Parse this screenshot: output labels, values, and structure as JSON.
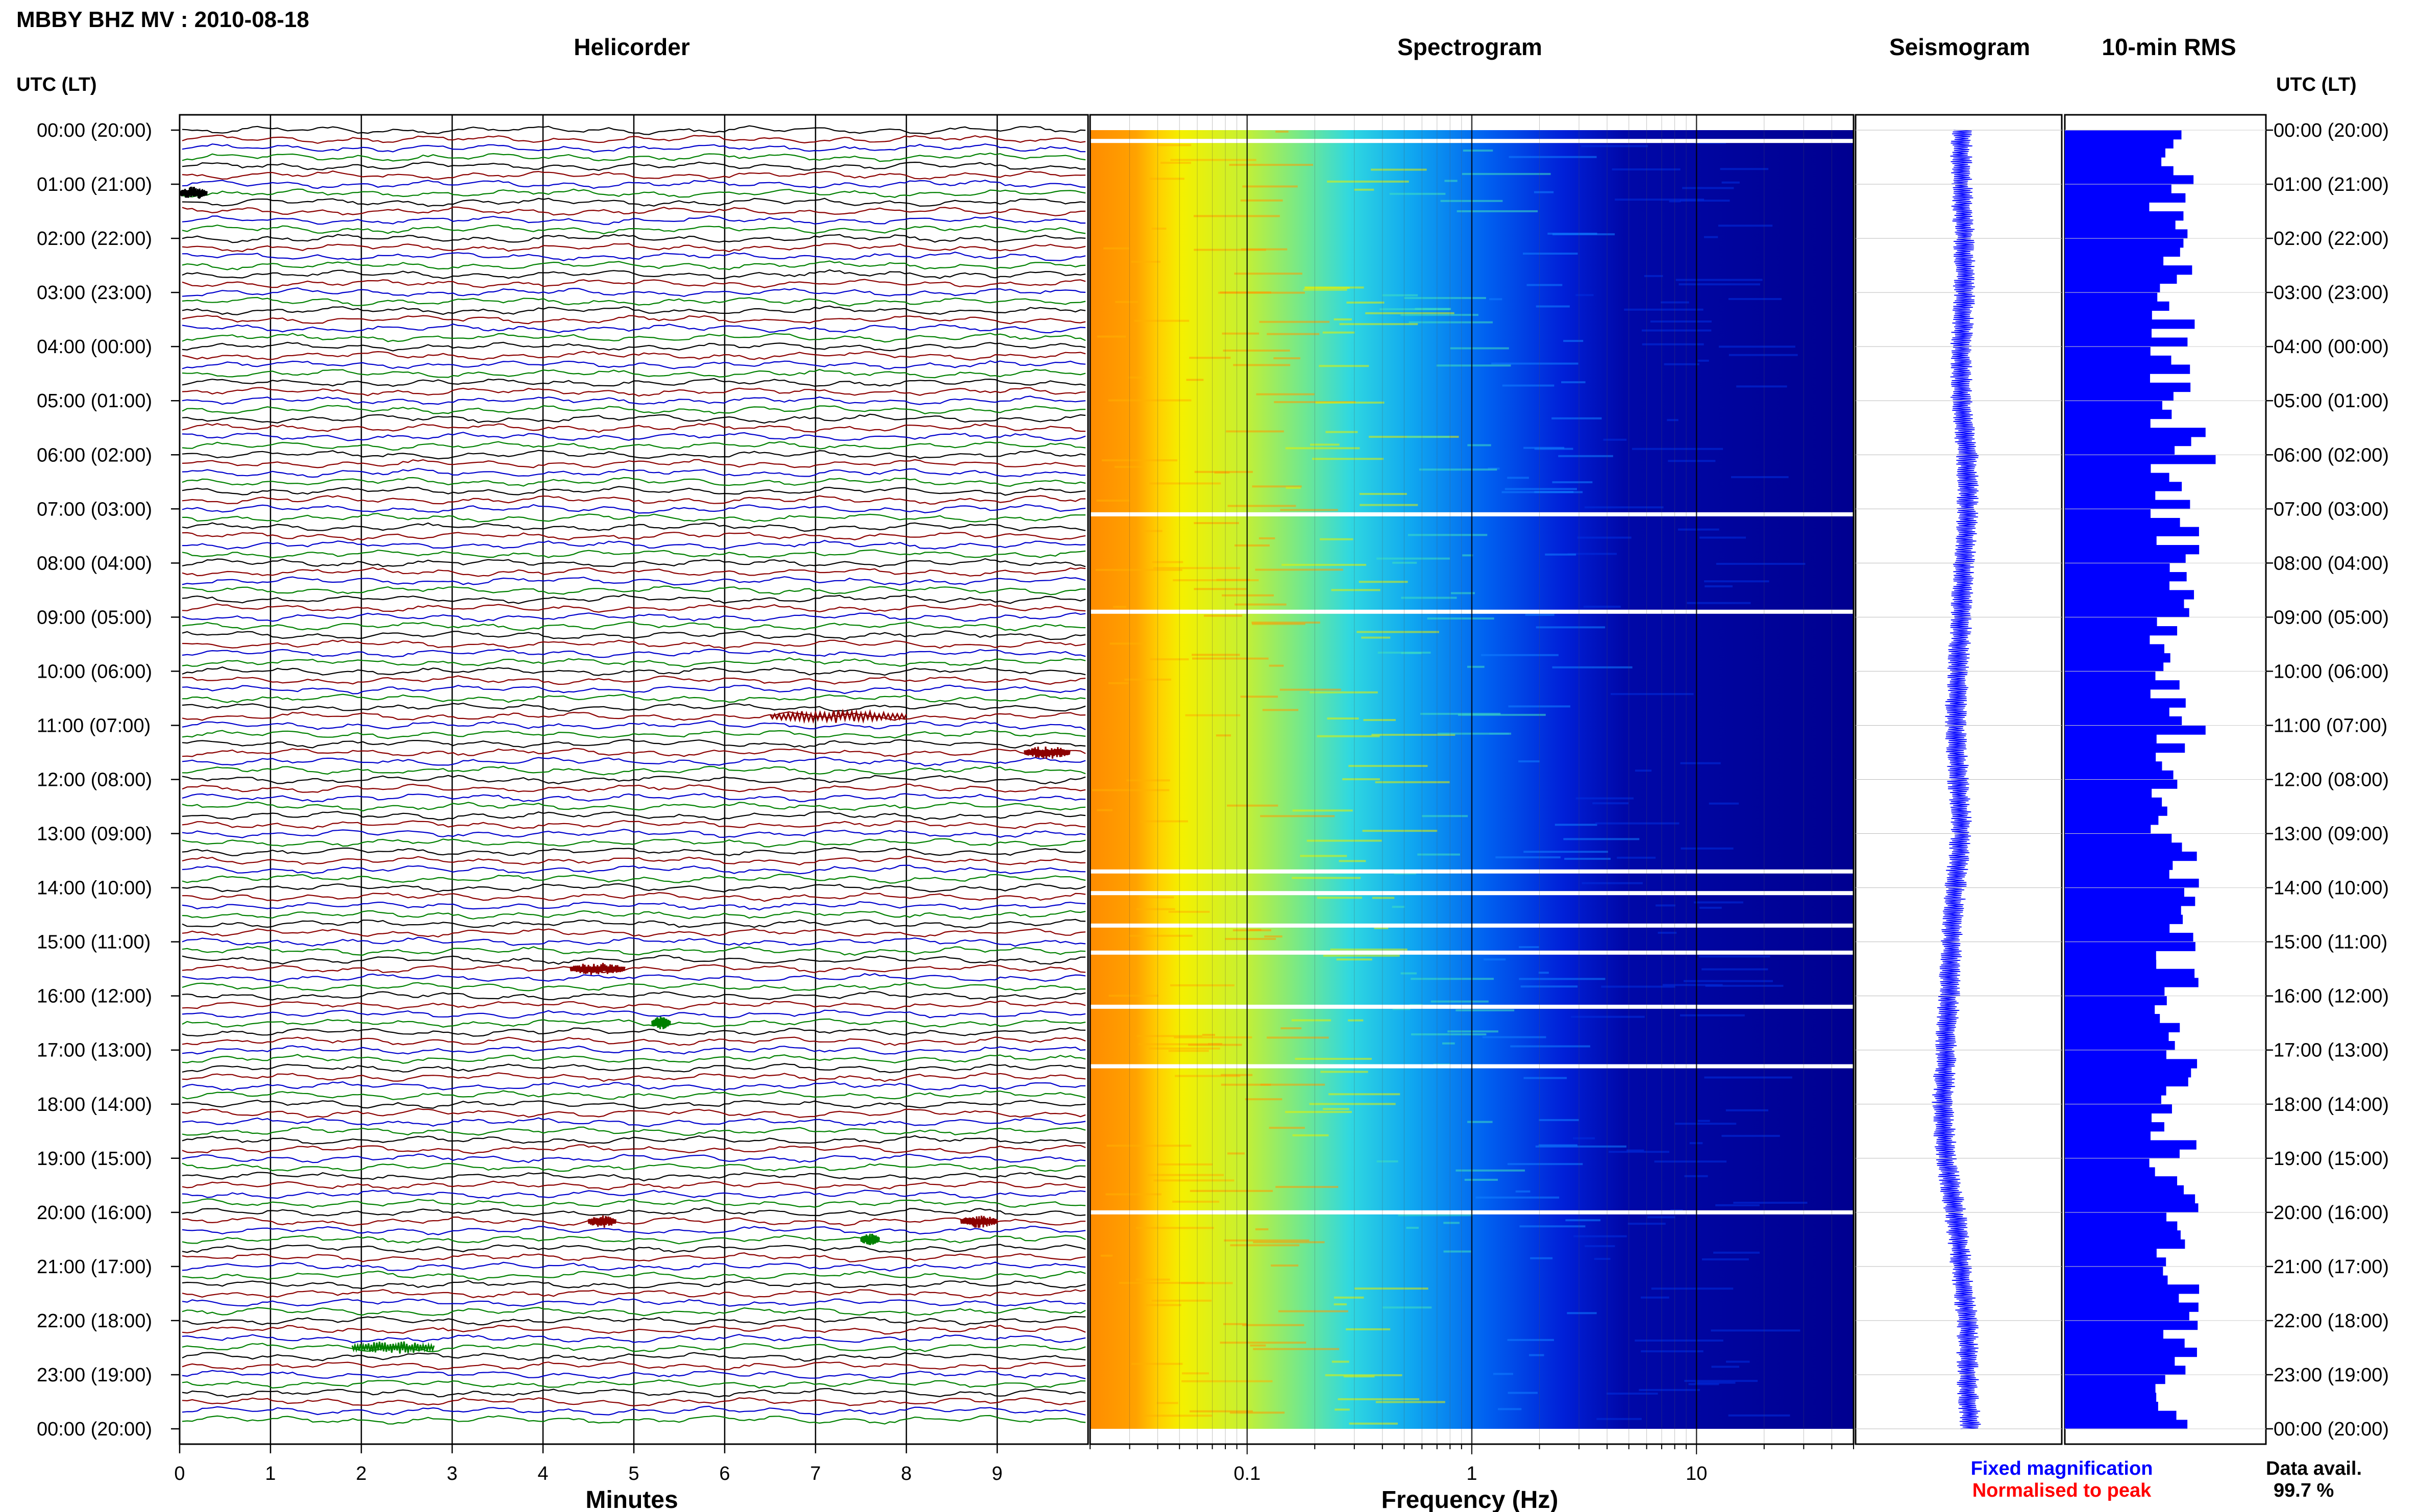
{
  "header": {
    "station_title": "MBBY BHZ MV : 2010-08-18"
  },
  "panels": {
    "helicorder": "Helicorder",
    "spectrogram": "Spectrogram",
    "seismogram": "Seismogram",
    "rms": "10-min RMS"
  },
  "axes": {
    "left_time_header": "UTC (LT)",
    "right_time_header": "UTC (LT)",
    "minutes_label": "Minutes",
    "frequency_label": "Frequency (Hz)",
    "minute_ticks": [
      "0",
      "1",
      "2",
      "3",
      "4",
      "5",
      "6",
      "7",
      "8",
      "9"
    ],
    "frequency_ticks": [
      "0.1",
      "1",
      "10"
    ]
  },
  "time_labels": [
    "00:00 (20:00)",
    "01:00 (21:00)",
    "02:00 (22:00)",
    "03:00 (23:00)",
    "04:00 (00:00)",
    "05:00 (01:00)",
    "06:00 (02:00)",
    "07:00 (03:00)",
    "08:00 (04:00)",
    "09:00 (05:00)",
    "10:00 (06:00)",
    "11:00 (07:00)",
    "12:00 (08:00)",
    "13:00 (09:00)",
    "14:00 (10:00)",
    "15:00 (11:00)",
    "16:00 (12:00)",
    "17:00 (13:00)",
    "18:00 (14:00)",
    "19:00 (15:00)",
    "20:00 (16:00)",
    "21:00 (17:00)",
    "22:00 (18:00)",
    "23:00 (19:00)",
    "00:00 (20:00)"
  ],
  "footer": {
    "legend_fixed": "Fixed magnification",
    "legend_normalised": "Normalised to peak",
    "data_avail_label": "Data avail.",
    "data_avail_value": "99.7 %"
  },
  "colors": {
    "trace_cycle": [
      "#000000",
      "#8b0000",
      "#0000cc",
      "#008000"
    ],
    "rms_bar": "#0000ff",
    "seismogram": "#0000ff",
    "legend_fixed": "#0000ff",
    "legend_normalised": "#ff0000"
  },
  "chart_data": [
    {
      "type": "line",
      "title": "Helicorder",
      "xlabel": "Minutes",
      "ylabel": "UTC (LT)",
      "xlim": [
        0,
        10
      ],
      "rows": 144,
      "row_minutes": 10,
      "events": [
        {
          "row": 7,
          "start_min": 0.0,
          "end_min": 0.3,
          "color": "#000000"
        },
        {
          "row": 65,
          "start_min": 6.5,
          "end_min": 8.0,
          "color": "#8b0000"
        },
        {
          "row": 69,
          "start_min": 9.3,
          "end_min": 9.8,
          "color": "#8b0000"
        },
        {
          "row": 93,
          "start_min": 4.3,
          "end_min": 4.9,
          "color": "#8b0000"
        },
        {
          "row": 99,
          "start_min": 5.2,
          "end_min": 5.4,
          "color": "#008000"
        },
        {
          "row": 121,
          "start_min": 4.5,
          "end_min": 4.8,
          "color": "#8b0000"
        },
        {
          "row": 121,
          "start_min": 8.6,
          "end_min": 9.0,
          "color": "#8b0000"
        },
        {
          "row": 123,
          "start_min": 7.5,
          "end_min": 7.7,
          "color": "#008000"
        },
        {
          "row": 135,
          "start_min": 1.9,
          "end_min": 2.8,
          "color": "#008000"
        }
      ]
    },
    {
      "type": "heatmap",
      "title": "Spectrogram",
      "xlabel": "Frequency (Hz)",
      "xscale": "log",
      "xlim": [
        0.02,
        50
      ],
      "colormap": "jet",
      "gap_hours": [
        0.2,
        7.1,
        8.9,
        13.7,
        14.1,
        14.7,
        15.2,
        16.2,
        17.3,
        20.0
      ]
    },
    {
      "type": "line",
      "title": "Seismogram",
      "series": [
        {
          "values_per_hour_offset": [
            0.0,
            0.0,
            0.05,
            0.05,
            0.0,
            0.0,
            0.1,
            0.1,
            0.05,
            0.0,
            -0.05,
            -0.1,
            -0.05,
            0.0,
            -0.1,
            -0.15,
            -0.2,
            -0.25,
            -0.3,
            -0.25,
            -0.1,
            0.0,
            0.1,
            0.1,
            0.15
          ]
        }
      ]
    },
    {
      "type": "bar",
      "title": "10-min RMS",
      "orientation": "horizontal",
      "n_bars": 144,
      "values_first_12": [
        0.58,
        0.54,
        0.5,
        0.48,
        0.54,
        0.64,
        0.53,
        0.6,
        0.42,
        0.59,
        0.55,
        0.61
      ]
    }
  ]
}
